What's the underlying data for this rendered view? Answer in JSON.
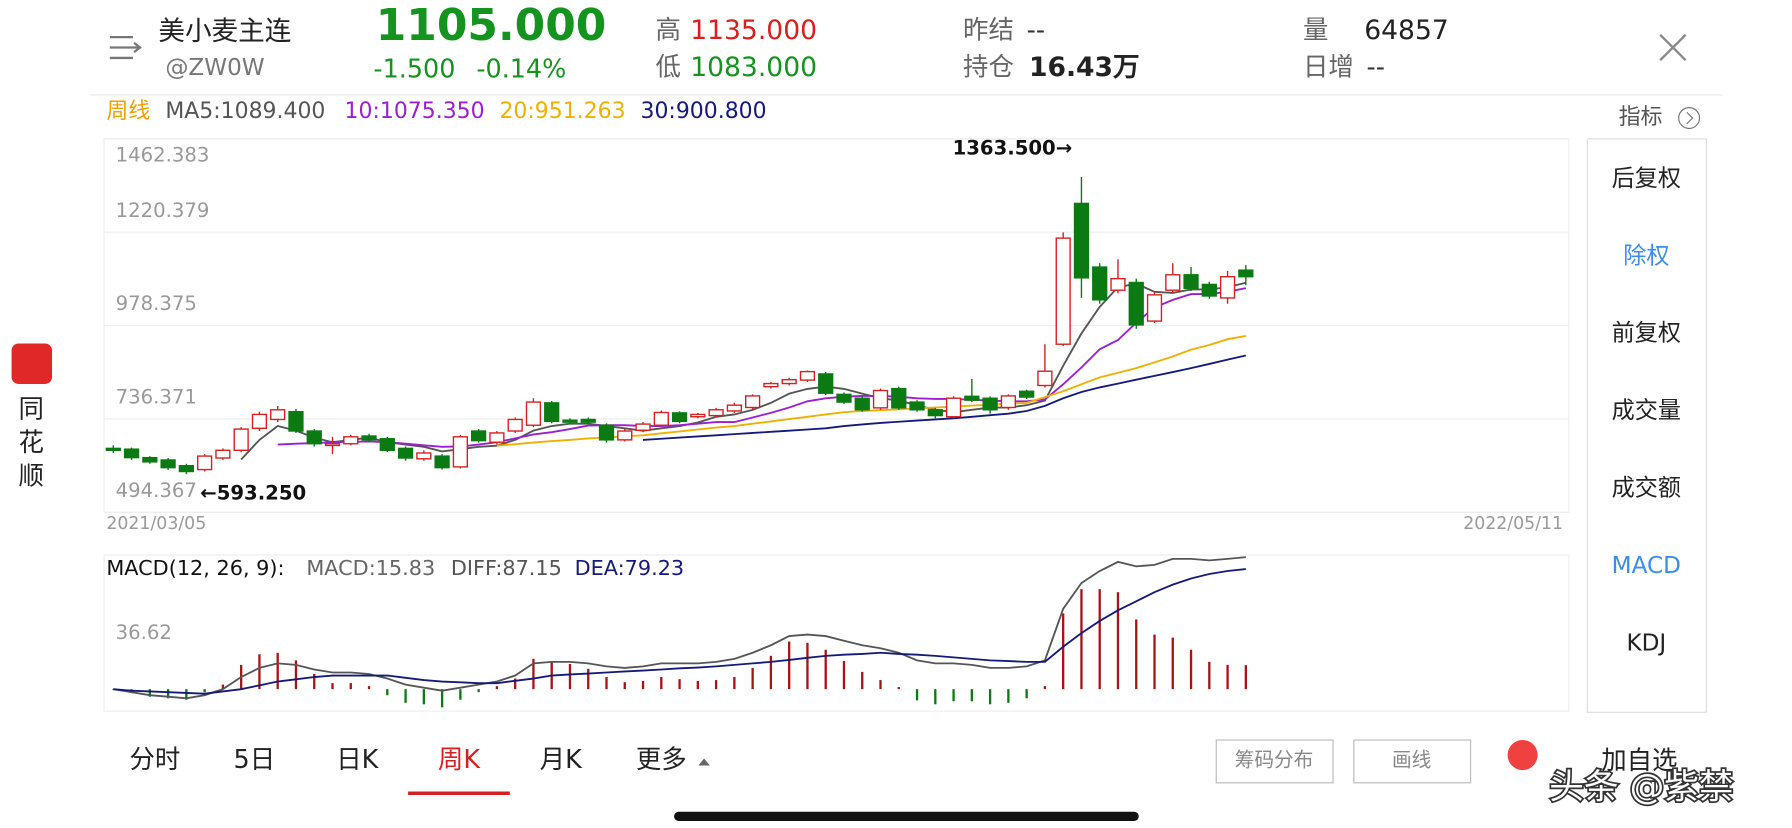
{
  "header": {
    "name": "美小麦主连",
    "code": "@ZW0W",
    "price": "1105.000",
    "change": "-1.500",
    "change_pct": "-0.14%",
    "high_label": "高",
    "high": "1135.000",
    "low_label": "低",
    "low": "1083.000",
    "prev_settle_label": "昨结",
    "prev_settle": "--",
    "open_interest_label": "持仓",
    "open_interest": "16.43万",
    "volume_label": "量",
    "volume": "64857",
    "daily_increase_label": "日增",
    "daily_increase": "--"
  },
  "sidebar": {
    "app_name": [
      "同",
      "花",
      "顺"
    ]
  },
  "indicator_button": "指标",
  "right_menu": [
    "后复权",
    "除权",
    "前复权",
    "成交量",
    "成交额",
    "MACD",
    "KDJ"
  ],
  "tabs": [
    "分时",
    "5日",
    "日K",
    "周K",
    "月K",
    "更多"
  ],
  "buttons": [
    "筹码分布",
    "画线"
  ],
  "add_watchlist": "加自选",
  "watermark": "头条 @紫禁",
  "chart_data": [
    {
      "type": "candlestick",
      "period": "周线",
      "x_start": "2021/03/05",
      "x_end": "2022/05/11",
      "ylim": [
        494.367,
        1462.383
      ],
      "yticks": [
        494.367,
        736.371,
        978.375,
        1220.379,
        1462.383
      ],
      "grid": true,
      "up_color": "#d42020",
      "down_color": "#0b7a12",
      "annotations": [
        "1363.500→",
        "←593.250"
      ],
      "open": [
        660,
        658,
        636,
        630,
        615,
        605,
        635,
        655,
        712,
        735,
        755,
        705,
        668,
        672,
        692,
        685,
        660,
        633,
        640,
        612,
        705,
        676,
        705,
        720,
        778,
        733,
        735,
        720,
        682,
        707,
        720,
        752,
        742,
        745,
        757,
        766,
        820,
        828,
        837,
        853,
        800,
        790,
        765,
        815,
        780,
        760,
        742,
        795,
        790,
        766,
        808,
        823,
        930,
        1295,
        1130,
        1070,
        1090,
        990,
        1070,
        1110,
        1085,
        1050,
        1122
      ],
      "high": [
        668,
        662,
        640,
        635,
        620,
        645,
        660,
        715,
        755,
        770,
        762,
        710,
        690,
        695,
        698,
        690,
        665,
        655,
        645,
        695,
        710,
        705,
        740,
        790,
        783,
        738,
        740,
        725,
        710,
        728,
        758,
        756,
        752,
        765,
        778,
        800,
        832,
        843,
        862,
        858,
        805,
        795,
        815,
        820,
        785,
        765,
        795,
        840,
        795,
        800,
        812,
        930,
        1220,
        1363.5,
        1140,
        1150,
        1100,
        1065,
        1140,
        1130,
        1092,
        1120,
        1135
      ],
      "low": [
        648,
        630,
        620,
        604,
        593.25,
        600,
        630,
        650,
        705,
        728,
        700,
        665,
        645,
        668,
        676,
        650,
        628,
        628,
        605,
        608,
        675,
        670,
        700,
        715,
        725,
        722,
        722,
        675,
        678,
        702,
        715,
        725,
        738,
        740,
        752,
        760,
        815,
        823,
        832,
        798,
        775,
        755,
        760,
        760,
        755,
        738,
        738,
        780,
        750,
        760,
        788,
        818,
        925,
        1050,
        1035,
        1062,
        970,
        985,
        1062,
        1068,
        1048,
        1035,
        1083
      ],
      "close": [
        655,
        636,
        625,
        610,
        600,
        640,
        655,
        710,
        748,
        760,
        705,
        672,
        672,
        690,
        682,
        655,
        635,
        648,
        610,
        690,
        680,
        700,
        735,
        780,
        730,
        728,
        728,
        682,
        705,
        723,
        753,
        730,
        748,
        760,
        772,
        796,
        828,
        838,
        859,
        803,
        780,
        760,
        810,
        765,
        760,
        745,
        790,
        785,
        760,
        796,
        793,
        860,
        1205,
        1102,
        1045,
        1100,
        980,
        1058,
        1110,
        1075,
        1055,
        1105,
        1105
      ],
      "series": [
        {
          "name": "MA5:1089.400",
          "color": "#555555",
          "values": [
            null,
            null,
            null,
            null,
            null,
            null,
            null,
            631,
            682,
            718,
            706,
            688,
            676,
            682,
            688,
            676,
            670,
            664,
            652,
            658,
            664,
            667,
            682,
            706,
            718,
            724,
            724,
            718,
            712,
            706,
            712,
            718,
            727,
            742,
            748,
            760,
            778,
            802,
            814,
            820,
            814,
            802,
            790,
            784,
            772,
            760,
            754,
            760,
            766,
            766,
            772,
            784,
            874,
            958,
            1027,
            1078,
            1087,
            1066,
            1063,
            1072,
            1072,
            1078,
            1089.4
          ]
        },
        {
          "name": "10:1075.350",
          "color": "#9b1fd1",
          "values": [
            null,
            null,
            null,
            null,
            null,
            null,
            null,
            null,
            null,
            670,
            672,
            674,
            676,
            677,
            678,
            676,
            672,
            668,
            664,
            665,
            670,
            676,
            686,
            696,
            702,
            710,
            719,
            720,
            720,
            718,
            718,
            720,
            724,
            728,
            728,
            740,
            752,
            766,
            782,
            790,
            794,
            796,
            796,
            794,
            790,
            788,
            788,
            786,
            784,
            782,
            782,
            787,
            826,
            870,
            917,
            941,
            986,
            1025,
            1045,
            1060,
            1060,
            1066,
            1075.35
          ]
        },
        {
          "name": "20:951.263",
          "color": "#f0b000",
          "values": [
            null,
            null,
            null,
            null,
            null,
            null,
            null,
            null,
            null,
            null,
            null,
            null,
            null,
            null,
            null,
            null,
            null,
            null,
            null,
            null,
            null,
            667,
            671,
            675,
            679,
            682,
            686,
            689,
            691,
            694,
            699,
            704,
            709,
            714,
            718,
            724,
            730,
            736,
            742,
            748,
            754,
            757,
            759,
            761,
            764,
            766,
            768,
            771,
            773,
            776,
            778,
            793,
            808,
            826,
            844,
            856,
            868,
            883,
            898,
            916,
            928,
            943,
            951.263
          ]
        },
        {
          "name": "30:900.800",
          "color": "#151a7a",
          "values": [
            null,
            null,
            null,
            null,
            null,
            null,
            null,
            null,
            null,
            null,
            null,
            null,
            null,
            null,
            null,
            null,
            null,
            null,
            null,
            null,
            null,
            null,
            null,
            null,
            null,
            null,
            null,
            null,
            null,
            682,
            685,
            688,
            691,
            694,
            697,
            700,
            703,
            706,
            709,
            712,
            718,
            722,
            726,
            729,
            732,
            735,
            738,
            742,
            746,
            750,
            757,
            770,
            790,
            806,
            818,
            828,
            838,
            848,
            858,
            868,
            879,
            890,
            900.8
          ]
        }
      ]
    },
    {
      "type": "macd",
      "title": "MACD(12, 26, 9):",
      "ylim": [
        -14.5,
        88.5
      ],
      "yticks": [
        36.62
      ],
      "bars": {
        "name": "MACD:15.83",
        "up_color": "#a51515",
        "down_color": "#0b7a12",
        "values": [
          0,
          -2,
          -5,
          -6,
          -7,
          -2,
          3,
          16,
          23,
          24,
          19,
          10,
          4,
          4,
          2,
          -4,
          -9,
          -10,
          -12,
          -7,
          -2,
          2,
          7,
          20,
          18,
          16.6,
          13.4,
          8,
          4.6,
          5.4,
          8,
          6.6,
          5.4,
          6,
          8,
          14,
          22,
          31.4,
          30.6,
          26,
          18.6,
          11.4,
          6,
          1.4,
          -7.4,
          -10,
          -8,
          -8,
          -10,
          -9,
          -6,
          2,
          50,
          66,
          66,
          64,
          46,
          36,
          34,
          26,
          18,
          16,
          15.83
        ]
      },
      "series": [
        {
          "name": "DIFF:87.15",
          "color": "#555555",
          "values": [
            0,
            -2,
            -4,
            -5,
            -6,
            -4,
            0,
            8,
            14,
            17,
            16,
            13,
            11,
            11,
            10,
            7,
            3,
            1,
            -1,
            1,
            3,
            5,
            9,
            17,
            18,
            18,
            17,
            15,
            14,
            15,
            17,
            17,
            17,
            18,
            20,
            24,
            29,
            35,
            36,
            35,
            32,
            29,
            27,
            24,
            19,
            17,
            17,
            16,
            14,
            14,
            15,
            19,
            53,
            70,
            78,
            84,
            81,
            82,
            86,
            86,
            85,
            86,
            87.15
          ]
        },
        {
          "name": "DEA:79.23",
          "color": "#151a7a",
          "values": [
            0,
            -1,
            -1.5,
            -2,
            -2.5,
            -3,
            -1.5,
            0,
            2.5,
            5,
            6.5,
            8,
            9,
            9,
            9,
            9,
            7.5,
            6,
            5,
            4.5,
            4,
            4,
            5.5,
            7,
            9,
            9.7,
            10.3,
            11,
            11.7,
            12.3,
            13,
            13.7,
            14.3,
            15,
            16,
            17,
            18,
            19.3,
            20.7,
            22,
            22.7,
            23.3,
            24,
            23.3,
            22.7,
            22,
            21,
            20,
            19,
            18.5,
            18,
            18,
            28,
            37,
            45,
            52,
            58,
            64,
            69,
            73,
            76,
            78,
            79.23
          ]
        }
      ]
    }
  ]
}
